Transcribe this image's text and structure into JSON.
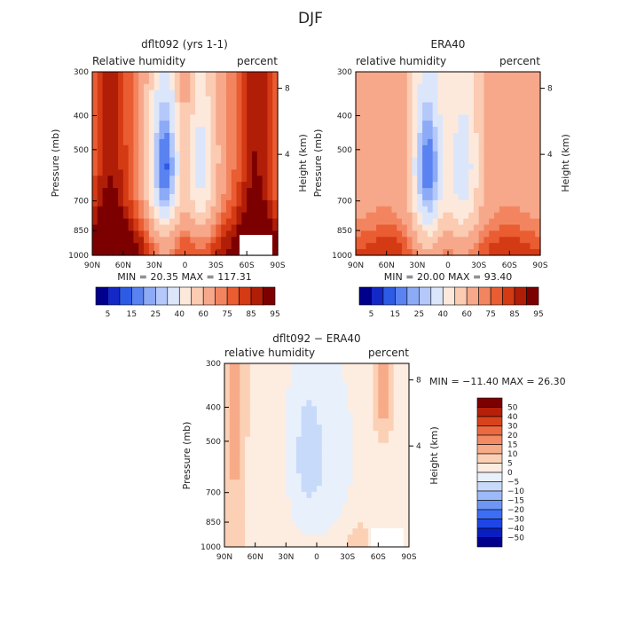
{
  "page_title": "DJF",
  "chart_data": [
    {
      "type": "heatmap",
      "title": "dflt092 (yrs 1-1)",
      "subtitle_left": "Relative humidity",
      "subtitle_right": "percent",
      "ylabel": "Pressure (mb)",
      "y2label": "Height (km)",
      "x_ticks": [
        "90N",
        "60N",
        "30N",
        "0",
        "30S",
        "60S",
        "90S"
      ],
      "y_ticks": [
        "300",
        "400",
        "500",
        "700",
        "850",
        "1000"
      ],
      "y2_ticks": [
        "8",
        "4"
      ],
      "stats": "MIN =  20.35   MAX = 117.31",
      "colorbar_labels": [
        "5",
        "15",
        "25",
        "40",
        "60",
        "75",
        "85",
        "95"
      ],
      "zrange": [
        20.35,
        117.31
      ],
      "variant": "model"
    },
    {
      "type": "heatmap",
      "title": "ERA40",
      "subtitle_left": "relative humidity",
      "subtitle_right": "percent",
      "ylabel": "Pressure (mb)",
      "y2label": "Height (km)",
      "x_ticks": [
        "90N",
        "60N",
        "30N",
        "0",
        "30S",
        "60S",
        "90S"
      ],
      "y_ticks": [
        "300",
        "400",
        "500",
        "700",
        "850",
        "1000"
      ],
      "y2_ticks": [
        "8",
        "4"
      ],
      "stats": "MIN =  20.00   MAX =  93.40",
      "colorbar_labels": [
        "5",
        "15",
        "25",
        "40",
        "60",
        "75",
        "85",
        "95"
      ],
      "zrange": [
        20.0,
        93.4
      ],
      "variant": "obs"
    },
    {
      "type": "heatmap",
      "title": "dflt092 − ERA40",
      "subtitle_left": "relative humidity",
      "subtitle_right": "percent",
      "ylabel": "Pressure (mb)",
      "y2label": "Height (km)",
      "x_ticks": [
        "90N",
        "60N",
        "30N",
        "0",
        "30S",
        "60S",
        "90S"
      ],
      "y_ticks": [
        "300",
        "400",
        "500",
        "700",
        "850",
        "1000"
      ],
      "y2_ticks": [
        "8",
        "4"
      ],
      "stats": "MIN = −11.40   MAX =  26.30",
      "colorbar_labels": [
        "50",
        "40",
        "30",
        "20",
        "15",
        "10",
        "5",
        "0",
        "−5",
        "−10",
        "−15",
        "−20",
        "−30",
        "−40",
        "−50"
      ],
      "zrange": [
        -11.4,
        26.3
      ],
      "variant": "diff"
    }
  ],
  "colors": {
    "abs_scale": [
      "#00008c",
      "#1428c8",
      "#2d5be6",
      "#5a82f0",
      "#8caaf5",
      "#b4c8fa",
      "#dce6fb",
      "#fde9dc",
      "#fbcbb2",
      "#f7a88a",
      "#f28560",
      "#ea5c32",
      "#d43a14",
      "#b01e08",
      "#7d0000"
    ],
    "diff_scale": [
      "#00008c",
      "#0a1ebe",
      "#1e46e6",
      "#3c6ef5",
      "#6e96f5",
      "#9cbaf8",
      "#c8dafa",
      "#e8f0fc",
      "#fdece0",
      "#fbd0b4",
      "#f7ab88",
      "#f28a64",
      "#ec6a40",
      "#d9431c",
      "#b4200a",
      "#7d0000"
    ]
  }
}
